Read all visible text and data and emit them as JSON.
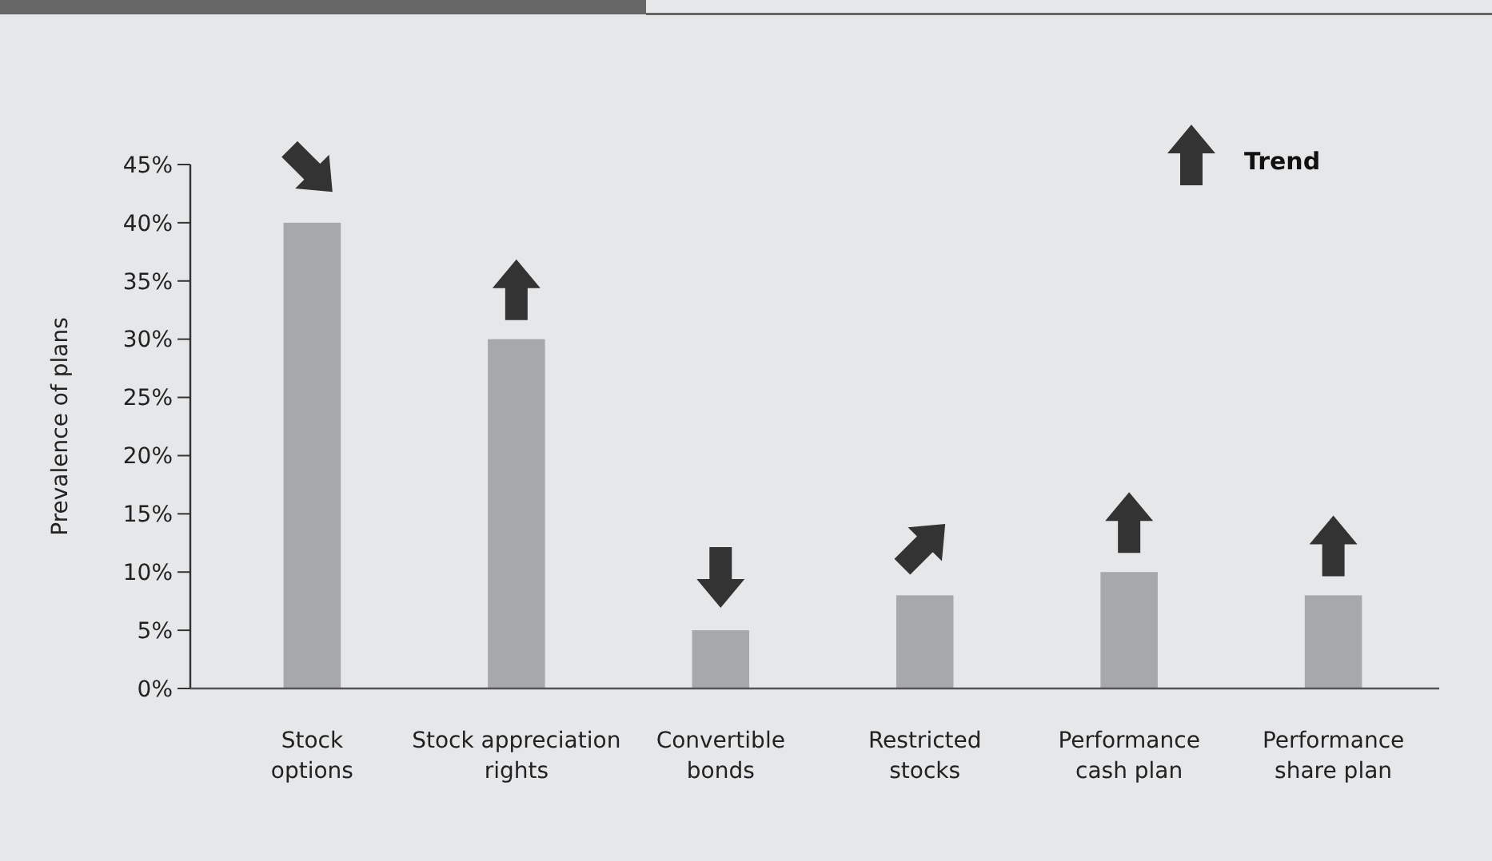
{
  "chart_data": {
    "type": "bar",
    "ylabel": "Prevalence of plans",
    "categories": [
      "Stock options",
      "Stock appreciation rights",
      "Convertible bonds",
      "Restricted stocks",
      "Performance cash plan",
      "Performance share plan"
    ],
    "values": [
      40,
      30,
      5,
      8,
      10,
      8
    ],
    "color": "#a7a8ab",
    "ylim": [
      0,
      45
    ],
    "yticks": [
      {
        "value": 0,
        "label": "0%"
      },
      {
        "value": 5,
        "label": "5%"
      },
      {
        "value": 10,
        "label": "10%"
      },
      {
        "value": 15,
        "label": "15%"
      },
      {
        "value": 20,
        "label": "20%"
      },
      {
        "value": 25,
        "label": "25%"
      },
      {
        "value": 30,
        "label": "30%"
      },
      {
        "value": 35,
        "label": "35%"
      },
      {
        "value": 40,
        "label": "40%"
      },
      {
        "value": 45,
        "label": "45%"
      }
    ],
    "annotations": [
      "Trend"
    ],
    "grid": false
  }
}
